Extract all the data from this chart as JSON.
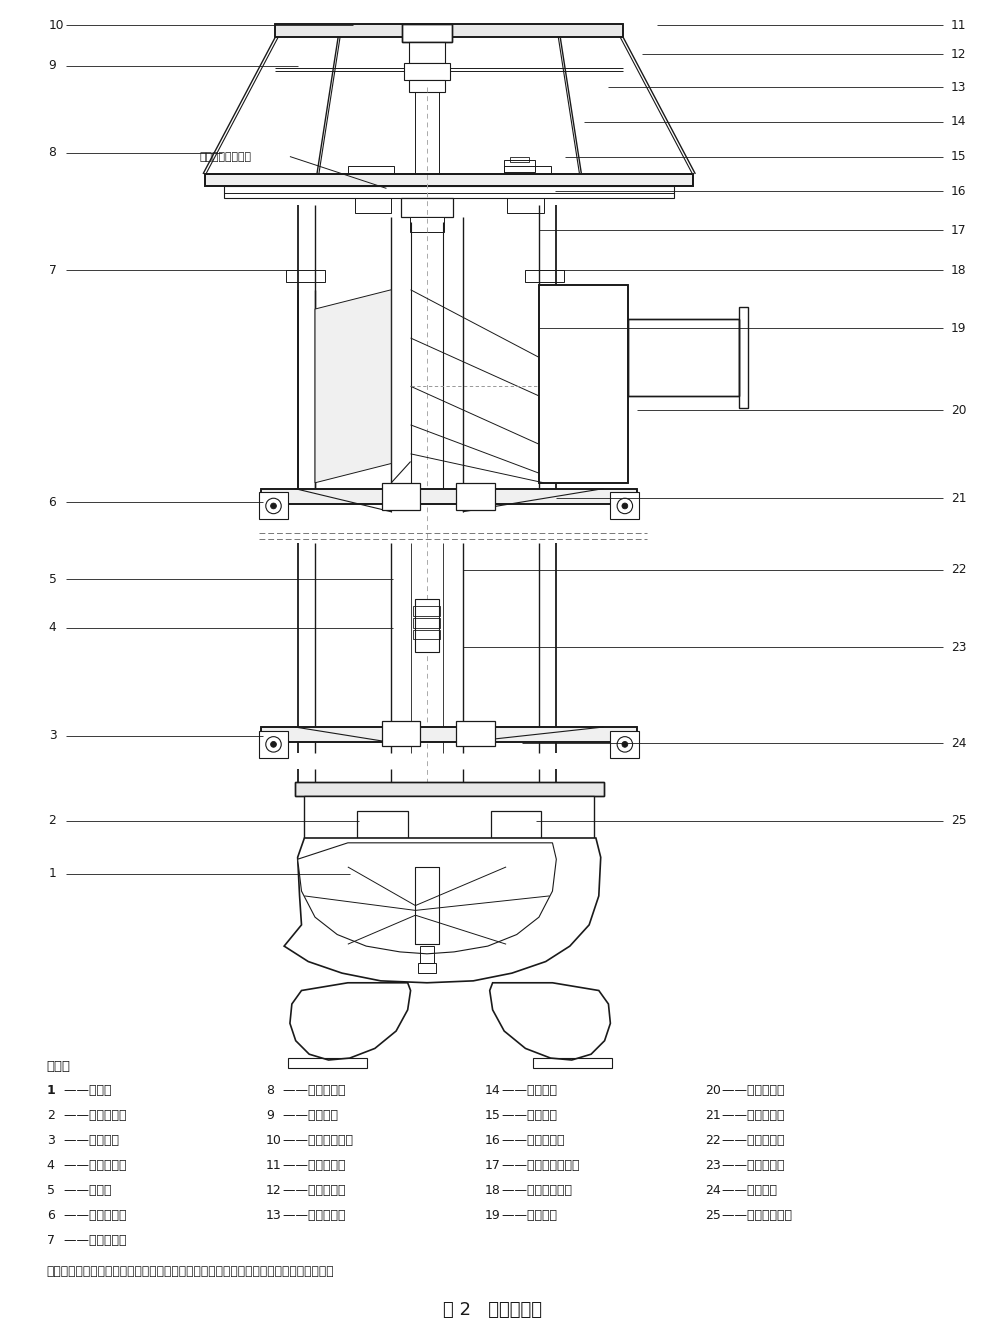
{
  "bg_color": "#ffffff",
  "lc": "#1a1a1a",
  "title": "图 2   结构示意图",
  "shuoming": "说明：",
  "lube_label": "导轴承润滑水进口",
  "note": "注：转子部件可抚出式、半开式单级混流叶轮、泵出口在安装基础之下、电机承受推力。",
  "parts": [
    [
      "1",
      "——叶轮；",
      "8",
      "——安装垄板；",
      "14",
      "——主轴上；",
      "20",
      "——吐出弯管；"
    ],
    [
      "2",
      "——导轴承下；",
      "9",
      "——泵盖板；",
      "15",
      "——排气阀；",
      "21",
      "——导轴承中；"
    ],
    [
      "3",
      "——导叶体；",
      "10",
      "——电机联轴器；",
      "16",
      "——泵支撑板；",
      "22",
      "——外接管中；"
    ],
    [
      "4",
      "——内接管下；",
      "11",
      "——电机支架；",
      "17",
      "——填料函体部件；",
      "23",
      "——外接管下；"
    ],
    [
      "5",
      "——主轴下",
      "12",
      "——调整螺母；",
      "18",
      "——导流片接管；",
      "24",
      "——叶轮室；"
    ],
    [
      "6",
      "——轴承支架；",
      "13",
      "——泵联轴器；",
      "19",
      "——导流片；",
      "25",
      "——吸入喇叭口。"
    ],
    [
      "7",
      "——外接管上；",
      "",
      "",
      "",
      "",
      "",
      ""
    ]
  ]
}
